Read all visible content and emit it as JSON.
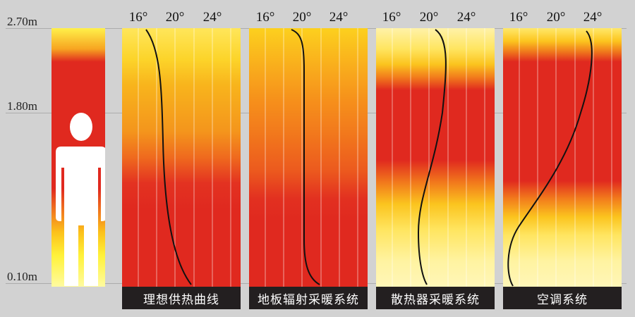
{
  "heights": [
    "2.70m",
    "1.80m",
    "0.10m"
  ],
  "ticks": [
    "16°",
    "20°",
    "24°"
  ],
  "panels": [
    {
      "caption": "理想供热曲线",
      "gradient": "linear-gradient(to bottom, #ffe65a 0%, #fcd42a 12%, #f8b41c 22%, #f4951c 40%, #ef6a1e 50%, #e33221 60%, #e0291f 70%, #e0291f 100%)"
    },
    {
      "caption": "地板辐射采暖系统",
      "gradient": "linear-gradient(to bottom, #fcd01e 0%, #f9ad1c 15%, #f6901b 28%, #f27a1c 40%, #ec5a1e 55%, #e23020 66%, #e0291f 75%, #e0291f 100%)"
    },
    {
      "caption": "散热器采暖系统",
      "gradient": "linear-gradient(to bottom, #fff2a8 0%, #ffe560 8%, #fbc41e 14%, #f27c1c 19%, #e0291f 24%, #e0291f 51%, #f27c1c 60%, #fbc41e 68%, #ffe560 78%, #fff3a0 90%, #fff6b8 100%)"
    },
    {
      "caption": "空调系统",
      "gradient": "linear-gradient(to bottom, #ffe86a 0%, #fcc51e 5%, #f07a1c 9%, #e0291f 13%, #e0291f 59%, #f27c1c 66%, #fbc41e 73%, #ffe560 80%, #fff3a0 90%, #fff6b8 100%)"
    }
  ],
  "colors": {
    "hot": "#e0291f",
    "warm": "#f7a521",
    "cool": "#fff23a",
    "caption_bg": "#231f20"
  }
}
